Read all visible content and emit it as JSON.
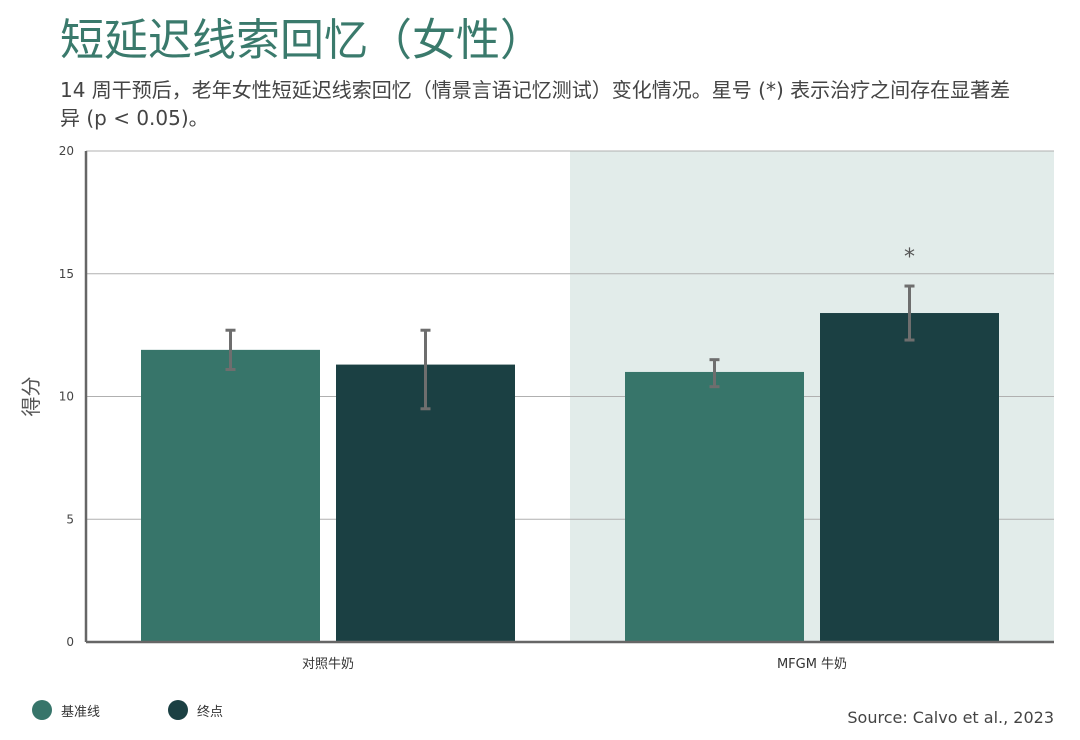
{
  "title": "短延迟线索回忆（女性）",
  "subtitle": "14 周干预后，老年女性短延迟线索回忆（情景言语记忆测试）变化情况。星号 (*) 表示治疗之间存在显著差异 (p < 0.05)。",
  "source": "Source: Calvo et al., 2023",
  "colors": {
    "baseline": "#37756a",
    "endpoint": "#1b4043",
    "highlight_bg": "#e2ecea",
    "grid": "#b0b0b0",
    "axis": "#666666",
    "errorbar": "#6e6e6e"
  },
  "chart_data": {
    "type": "bar",
    "title": "短延迟线索回忆（女性）",
    "ylabel": "得分",
    "xlabel": "",
    "ylim": [
      0,
      20
    ],
    "yticks": [
      0,
      5,
      10,
      15,
      20
    ],
    "grid": true,
    "legend_position": "bottom-left",
    "categories": [
      "对照牛奶",
      "MFGM 牛奶"
    ],
    "highlight_category": "MFGM 牛奶",
    "series": [
      {
        "name": "基准线",
        "color": "#37756a",
        "values": [
          11.9,
          11.0
        ],
        "error_low": [
          11.1,
          10.4
        ],
        "error_high": [
          12.7,
          11.5
        ]
      },
      {
        "name": "终点",
        "color": "#1b4043",
        "values": [
          11.3,
          13.4
        ],
        "error_low": [
          9.5,
          12.3
        ],
        "error_high": [
          12.7,
          14.5
        ]
      }
    ],
    "annotations": [
      {
        "category": "MFGM 牛奶",
        "series": "终点",
        "text": "*"
      }
    ]
  }
}
